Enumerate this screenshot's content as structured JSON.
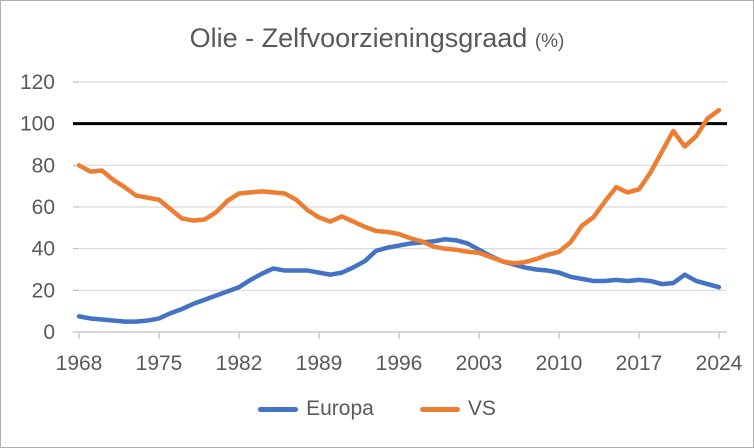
{
  "chart_data": {
    "type": "line",
    "title": "Olie - Zelfvoorzieningsgraad",
    "title_unit": "(%)",
    "x": [
      1968,
      1969,
      1970,
      1971,
      1972,
      1973,
      1974,
      1975,
      1976,
      1977,
      1978,
      1979,
      1980,
      1981,
      1982,
      1983,
      1984,
      1985,
      1986,
      1987,
      1988,
      1989,
      1990,
      1991,
      1992,
      1993,
      1994,
      1995,
      1996,
      1997,
      1998,
      1999,
      2000,
      2001,
      2002,
      2003,
      2004,
      2005,
      2006,
      2007,
      2008,
      2009,
      2010,
      2011,
      2012,
      2013,
      2014,
      2015,
      2016,
      2017,
      2018,
      2019,
      2020,
      2021,
      2022,
      2023,
      2024
    ],
    "series": [
      {
        "name": "Europa",
        "color": "#4472C4",
        "values": [
          7.5,
          6.5,
          6,
          5.5,
          5,
          5,
          5.5,
          6.5,
          9,
          11,
          13.5,
          15.5,
          17.5,
          19.5,
          21.5,
          25,
          28,
          30.5,
          29.5,
          29.5,
          29.5,
          28.5,
          27.5,
          28.5,
          31,
          34,
          39,
          40.5,
          41.5,
          42.5,
          43,
          43.5,
          44.5,
          44,
          42.5,
          39.5,
          36.5,
          34,
          32.5,
          31,
          30,
          29.5,
          28.5,
          26.5,
          25.5,
          24.5,
          24.5,
          25,
          24.5,
          25,
          24.5,
          23,
          23.5,
          27.5,
          24.5,
          23,
          21.5
        ]
      },
      {
        "name": "VS",
        "color": "#ED7D31",
        "values": [
          80,
          77,
          77.5,
          73,
          69.5,
          65.5,
          64.5,
          63.5,
          59,
          54.5,
          53.5,
          54,
          57.5,
          63,
          66.5,
          67,
          67.5,
          67,
          66.5,
          63.5,
          58.5,
          55,
          53,
          55.5,
          53,
          50.5,
          48.5,
          48,
          47,
          45,
          43.5,
          41,
          40,
          39.5,
          38.5,
          38,
          36,
          34,
          33,
          33.5,
          35,
          37,
          38.5,
          43,
          51,
          55,
          62.5,
          69.5,
          67,
          68.5,
          76.5,
          86.5,
          96.5,
          89,
          94,
          102.5,
          106.5
        ]
      }
    ],
    "reference_line": {
      "value": 100,
      "color": "#000000"
    },
    "ylim": [
      0,
      120
    ],
    "y_ticks": [
      0,
      20,
      40,
      60,
      80,
      100,
      120
    ],
    "x_tick_labels": [
      1968,
      1975,
      1982,
      1989,
      1996,
      2003,
      2010,
      2017,
      2024
    ],
    "grid": true,
    "legend_position": "bottom",
    "xlabel": "",
    "ylabel": ""
  },
  "colors": {
    "europa": "#4472C4",
    "vs": "#ED7D31",
    "reference_line": "#000000",
    "gridline": "#D9D9D9",
    "axis_line": "#BFBFBF",
    "axis_text": "#595959",
    "title_text": "#595959",
    "border": "#AFAFAF",
    "background": "#FFFFFF"
  }
}
